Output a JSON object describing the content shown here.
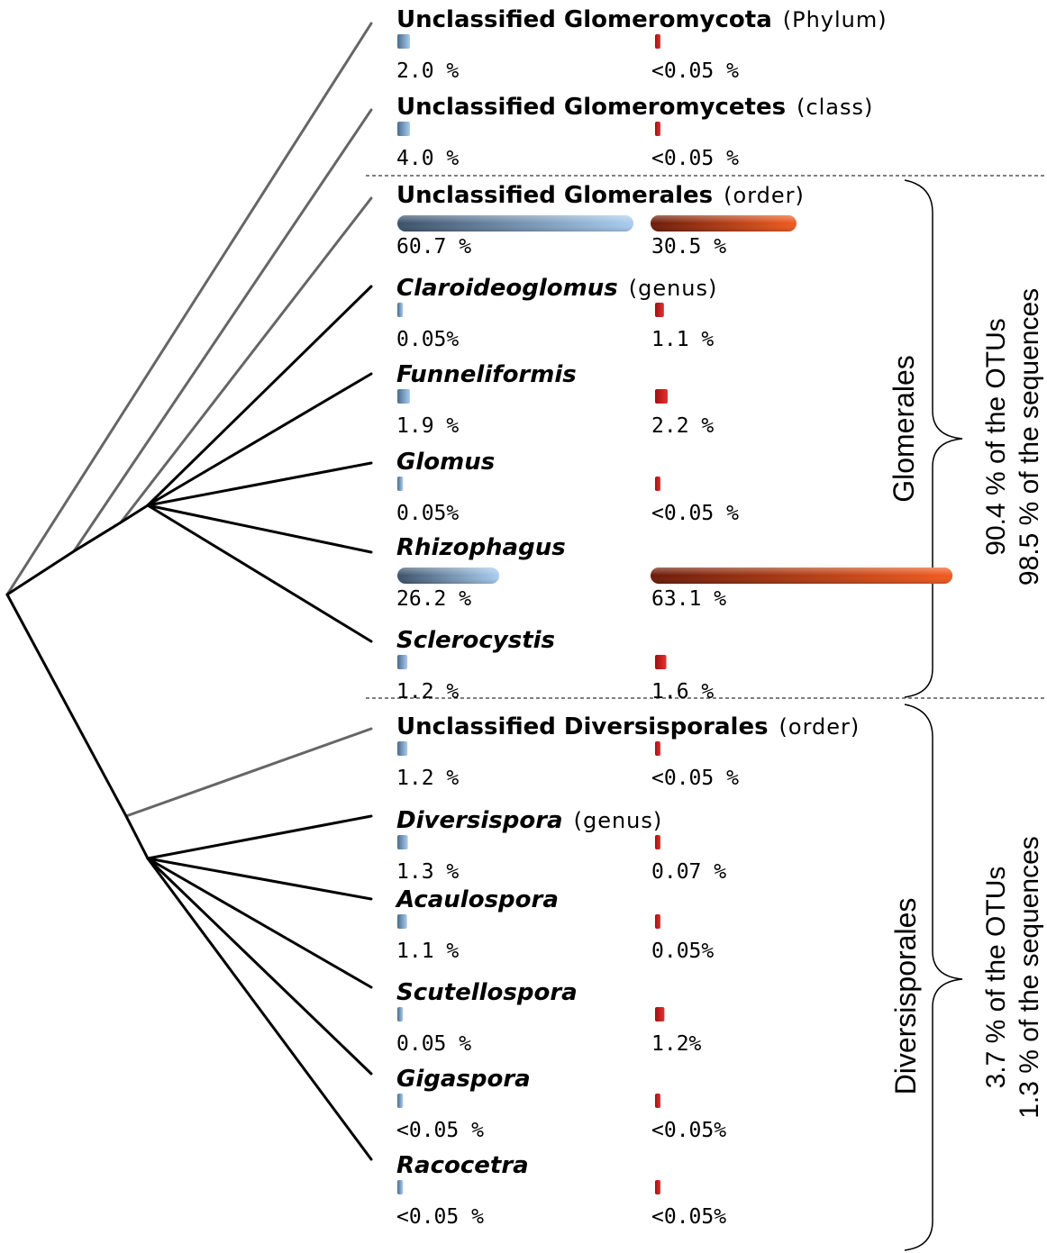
{
  "colors": {
    "otu_bar_dark": "#3a5068",
    "otu_bar_light": "#a9cdf0",
    "seq_bar_dark": "#6b1a08",
    "seq_bar_light": "#f25a1e",
    "unclassified_branch": "#666666",
    "classified_branch": "#000000"
  },
  "taxa": [
    {
      "name": "Unclassified  Glomeromycota",
      "rank": "(Phylum)",
      "italic": false,
      "otu_pct": 2.0,
      "otu_label": "2.0 %",
      "seq_pct": 0.05,
      "seq_label": "<0.05 %",
      "unclassified": true
    },
    {
      "name": "Unclassified  Glomeromycetes",
      "rank": "(class)",
      "italic": false,
      "otu_pct": 4.0,
      "otu_label": "4.0 %",
      "seq_pct": 0.05,
      "seq_label": "<0.05 %",
      "unclassified": true
    },
    {
      "name": "Unclassified  Glomerales",
      "rank": "(order)",
      "italic": false,
      "otu_pct": 60.7,
      "otu_label": "60.7 %",
      "seq_pct": 30.5,
      "seq_label": "30.5 %",
      "unclassified": true
    },
    {
      "name": "Claroideoglomus",
      "rank": "(genus)",
      "italic": true,
      "otu_pct": 0.05,
      "otu_label": "0.05%",
      "seq_pct": 1.1,
      "seq_label": "1.1 %",
      "unclassified": false
    },
    {
      "name": "Funneliformis",
      "rank": "",
      "italic": true,
      "otu_pct": 1.9,
      "otu_label": "1.9  %",
      "seq_pct": 2.2,
      "seq_label": "2.2 %",
      "unclassified": false
    },
    {
      "name": "Glomus",
      "rank": "",
      "italic": true,
      "otu_pct": 0.05,
      "otu_label": "0.05%",
      "seq_pct": 0.05,
      "seq_label": "<0.05 %",
      "unclassified": false
    },
    {
      "name": "Rhizophagus",
      "rank": "",
      "italic": true,
      "otu_pct": 26.2,
      "otu_label": "26.2  %",
      "seq_pct": 63.1,
      "seq_label": "63.1 %",
      "unclassified": false
    },
    {
      "name": "Sclerocystis",
      "rank": "",
      "italic": true,
      "otu_pct": 1.2,
      "otu_label": "1.2  %",
      "seq_pct": 1.6,
      "seq_label": "1.6 %",
      "unclassified": false
    },
    {
      "name": "Unclassified  Diversisporales",
      "rank": "(order)",
      "italic": false,
      "otu_pct": 1.2,
      "otu_label": "1.2  %",
      "seq_pct": 0.05,
      "seq_label": "<0.05 %",
      "unclassified": true
    },
    {
      "name": "Diversispora",
      "rank": "(genus)",
      "italic": true,
      "otu_pct": 1.3,
      "otu_label": "1.3  %",
      "seq_pct": 0.07,
      "seq_label": "0.07 %",
      "unclassified": false
    },
    {
      "name": "Acaulospora",
      "rank": "",
      "italic": true,
      "otu_pct": 1.1,
      "otu_label": "1.1  %",
      "seq_pct": 0.05,
      "seq_label": "0.05%",
      "unclassified": false
    },
    {
      "name": "Scutellospora",
      "rank": "",
      "italic": true,
      "otu_pct": 0.05,
      "otu_label": "0.05  %",
      "seq_pct": 1.2,
      "seq_label": "1.2%",
      "unclassified": false
    },
    {
      "name": "Gigaspora",
      "rank": "",
      "italic": true,
      "otu_pct": 0.05,
      "otu_label": "<0.05  %",
      "seq_pct": 0.05,
      "seq_label": "<0.05%",
      "unclassified": false
    },
    {
      "name": "Racocetra",
      "rank": "",
      "italic": true,
      "otu_pct": 0.05,
      "otu_label": "<0.05  %",
      "seq_pct": 0.05,
      "seq_label": "<0.05%",
      "unclassified": false
    }
  ],
  "groups": [
    {
      "name": "Glomerales",
      "otus_line": "90.4 % of the OTUs",
      "seqs_line": "98.5 % of the sequences"
    },
    {
      "name": "Diversisporales",
      "otus_line": "3.7 % of the OTUs",
      "seqs_line": "1.3 % of the sequences"
    }
  ]
}
